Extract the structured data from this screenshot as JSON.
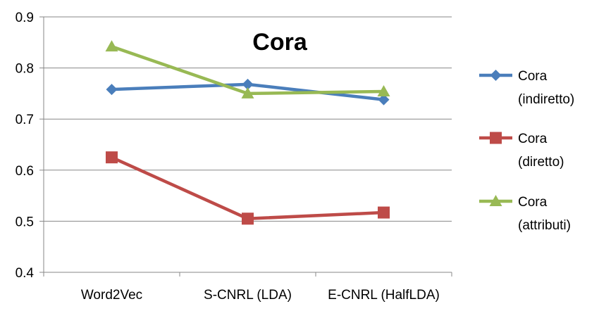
{
  "chart_data": {
    "type": "line",
    "title": "Cora",
    "xlabel": "",
    "ylabel": "",
    "categories": [
      "Word2Vec",
      "S-CNRL (LDA)",
      "E-CNRL (HalfLDA)"
    ],
    "ylim": [
      0.4,
      0.9
    ],
    "yticks": [
      0.4,
      0.5,
      0.6,
      0.7,
      0.8,
      0.9
    ],
    "ytick_labels": [
      "0.4",
      "0.5",
      "0.6",
      "0.7",
      "0.8",
      "0.9"
    ],
    "grid": "horizontal",
    "legend_position": "right",
    "series": [
      {
        "name_lines": [
          "Cora",
          "(indiretto)"
        ],
        "values": [
          0.758,
          0.768,
          0.738
        ],
        "color": "#4A7EBB",
        "marker": "diamond"
      },
      {
        "name_lines": [
          "Cora",
          "(diretto)"
        ],
        "values": [
          0.625,
          0.505,
          0.517
        ],
        "color": "#BE4B48",
        "marker": "square"
      },
      {
        "name_lines": [
          "Cora",
          "(attributi)"
        ],
        "values": [
          0.842,
          0.75,
          0.754
        ],
        "color": "#98B954",
        "marker": "triangle"
      }
    ]
  }
}
